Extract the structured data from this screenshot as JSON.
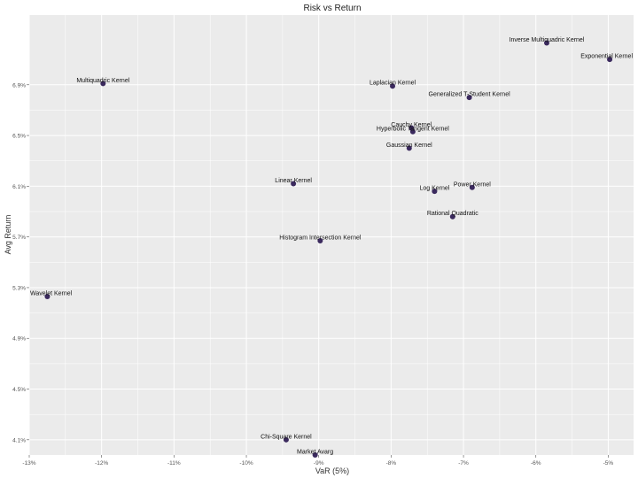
{
  "chart_data": {
    "type": "scatter",
    "title": "Risk vs Return",
    "xlabel": "VaR (5%)",
    "ylabel": "Avg Return",
    "xlim": [
      -0.13,
      -0.0465
    ],
    "ylim": [
      0.0398,
      0.0745
    ],
    "x_ticks": [
      -0.13,
      -0.12,
      -0.11,
      -0.1,
      -0.09,
      -0.08,
      -0.07,
      -0.06,
      -0.05
    ],
    "x_tick_labels": [
      "-13%",
      "-12%",
      "-11%",
      "-10%",
      "-9%",
      "-8%",
      "-7%",
      "-6%",
      "-5%"
    ],
    "y_ticks": [
      0.041,
      0.045,
      0.049,
      0.053,
      0.057,
      0.061,
      0.065,
      0.069
    ],
    "y_tick_labels": [
      "4.1%",
      "4.5%",
      "4.9%",
      "5.3%",
      "5.7%",
      "6.1%",
      "6.5%",
      "6.9%"
    ],
    "grid": true,
    "legend": "none",
    "point_color": "#3b2a5e",
    "panel_color": "#ebebeb",
    "grid_color": "#ffffff",
    "points": [
      {
        "label": "Inverse Multiquadric Kernel",
        "x": -0.0585,
        "y": 0.0723
      },
      {
        "label": "Exponential Kernel",
        "x": -0.0498,
        "y": 0.071
      },
      {
        "label": "Multiquadric Kernel",
        "x": -0.1198,
        "y": 0.0691
      },
      {
        "label": "Laplacian Kernel",
        "x": -0.0798,
        "y": 0.0689
      },
      {
        "label": "Generalized T-Student Kernel",
        "x": -0.0692,
        "y": 0.068
      },
      {
        "label": "Cauchy Kernel",
        "x": -0.0772,
        "y": 0.0656
      },
      {
        "label": "Hyperbolic Tangent Kernel",
        "x": -0.077,
        "y": 0.0653
      },
      {
        "label": "Gaussian Kernel",
        "x": -0.0775,
        "y": 0.064
      },
      {
        "label": "Linear Kernel",
        "x": -0.0935,
        "y": 0.0612
      },
      {
        "label": "Power Kernel",
        "x": -0.0688,
        "y": 0.0609
      },
      {
        "label": "Log Kernel",
        "x": -0.074,
        "y": 0.0606
      },
      {
        "label": "Rational Quadratic",
        "x": -0.0715,
        "y": 0.0586
      },
      {
        "label": "Histogram Intersection Kernel",
        "x": -0.0898,
        "y": 0.0567
      },
      {
        "label": "Wavelet Kernel",
        "x": -0.1275,
        "y": 0.0523
      },
      {
        "label": "Chi-Square Kernel",
        "x": -0.0945,
        "y": 0.041
      },
      {
        "label": "Market Avarg",
        "x": -0.0905,
        "y": 0.0398
      }
    ]
  }
}
